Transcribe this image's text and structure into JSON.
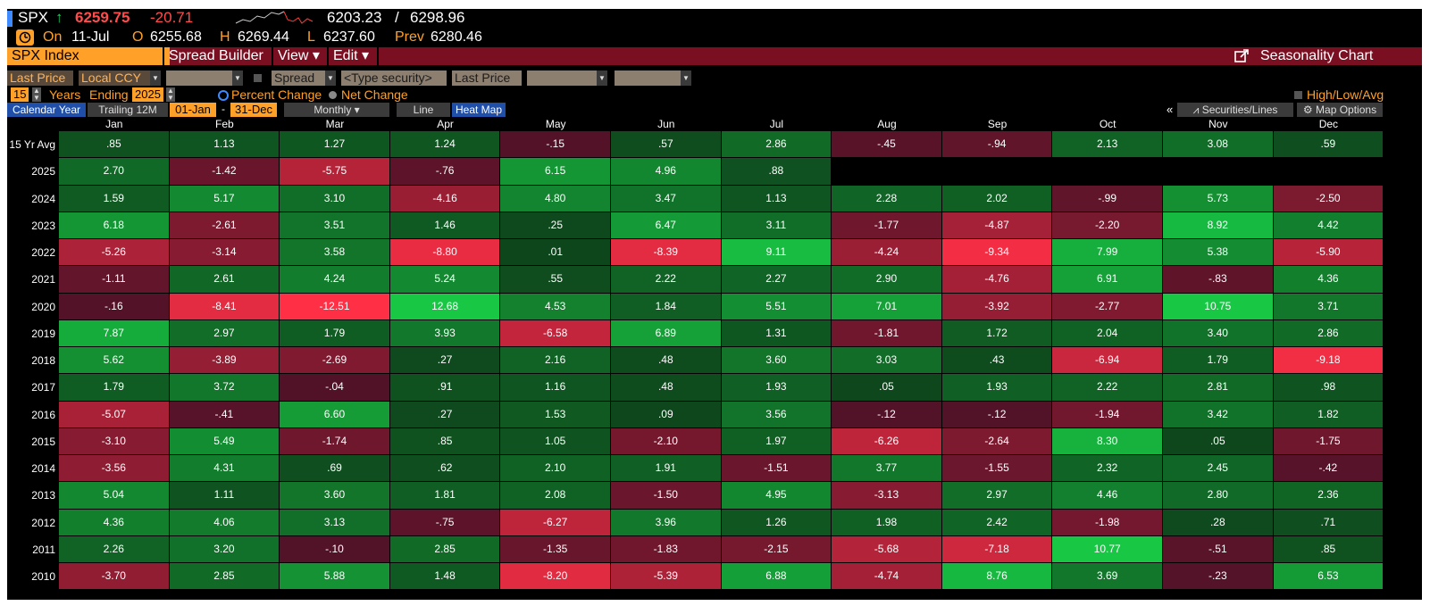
{
  "ticker": {
    "symbol": "SPX",
    "arrow": "↑",
    "last": "6259.75",
    "change": "-20.71",
    "low_range": "6203.23",
    "slash": "/",
    "high_range": "6298.96"
  },
  "ohlc": {
    "on_label": "On",
    "date": "11-Jul",
    "o_label": "O",
    "open": "6255.68",
    "h_label": "H",
    "high": "6269.44",
    "l_label": "L",
    "low": "6237.60",
    "prev_label": "Prev",
    "prev": "6280.46"
  },
  "menu": {
    "security": "SPX Index",
    "spread_builder": "Spread Builder",
    "view": "View ▾",
    "edit": "Edit ▾",
    "seasonality_chart": "Seasonality Chart"
  },
  "fields": {
    "field1": "Last Price",
    "currency": "Local CCY",
    "spread": "Spread",
    "type_security": "<Type security>",
    "field2": "Last Price"
  },
  "years_row": {
    "years_count": "15",
    "years_label": "Years",
    "ending_label": "Ending",
    "end_year": "2025",
    "percent_change": "Percent Change",
    "net_change": "Net Change",
    "high_low_avg": "High/Low/Avg"
  },
  "tabs": {
    "calendar_year": "Calendar Year",
    "trailing": "Trailing 12M",
    "start_date": "01-Jan",
    "dash": "-",
    "end_date": "31-Dec",
    "frequency": "Monthly ▾",
    "line": "Line",
    "heat_map": "Heat Map",
    "collapse": "«",
    "securities_lines": "Securities/Lines",
    "map_options": "Map Options"
  },
  "colors": {
    "background": "#000000",
    "menu_bar": "#7a0f22",
    "accent_orange": "#ffa028",
    "up_green": "#1ed760",
    "down_red": "#ff4d4d",
    "selected_tab": "#1f4fa8"
  },
  "heatmap": {
    "months": [
      "Jan",
      "Feb",
      "Mar",
      "Apr",
      "May",
      "Jun",
      "Jul",
      "Aug",
      "Sep",
      "Oct",
      "Nov",
      "Dec"
    ],
    "rows": [
      {
        "label": "15 Yr Avg",
        "values": [
          ".85",
          "1.13",
          "1.27",
          "1.24",
          "-.15",
          ".57",
          "2.86",
          "-.45",
          "-.94",
          "2.13",
          "3.08",
          ".59"
        ]
      },
      {
        "label": "2025",
        "values": [
          "2.70",
          "-1.42",
          "-5.75",
          "-.76",
          "6.15",
          "4.96",
          ".88",
          "",
          "",
          "",
          "",
          ""
        ]
      },
      {
        "label": "2024",
        "values": [
          "1.59",
          "5.17",
          "3.10",
          "-4.16",
          "4.80",
          "3.47",
          "1.13",
          "2.28",
          "2.02",
          "-.99",
          "5.73",
          "-2.50"
        ]
      },
      {
        "label": "2023",
        "values": [
          "6.18",
          "-2.61",
          "3.51",
          "1.46",
          ".25",
          "6.47",
          "3.11",
          "-1.77",
          "-4.87",
          "-2.20",
          "8.92",
          "4.42"
        ]
      },
      {
        "label": "2022",
        "values": [
          "-5.26",
          "-3.14",
          "3.58",
          "-8.80",
          ".01",
          "-8.39",
          "9.11",
          "-4.24",
          "-9.34",
          "7.99",
          "5.38",
          "-5.90"
        ]
      },
      {
        "label": "2021",
        "values": [
          "-1.11",
          "2.61",
          "4.24",
          "5.24",
          ".55",
          "2.22",
          "2.27",
          "2.90",
          "-4.76",
          "6.91",
          "-.83",
          "4.36"
        ]
      },
      {
        "label": "2020",
        "values": [
          "-.16",
          "-8.41",
          "-12.51",
          "12.68",
          "4.53",
          "1.84",
          "5.51",
          "7.01",
          "-3.92",
          "-2.77",
          "10.75",
          "3.71"
        ]
      },
      {
        "label": "2019",
        "values": [
          "7.87",
          "2.97",
          "1.79",
          "3.93",
          "-6.58",
          "6.89",
          "1.31",
          "-1.81",
          "1.72",
          "2.04",
          "3.40",
          "2.86"
        ]
      },
      {
        "label": "2018",
        "values": [
          "5.62",
          "-3.89",
          "-2.69",
          ".27",
          "2.16",
          ".48",
          "3.60",
          "3.03",
          ".43",
          "-6.94",
          "1.79",
          "-9.18"
        ]
      },
      {
        "label": "2017",
        "values": [
          "1.79",
          "3.72",
          "-.04",
          ".91",
          "1.16",
          ".48",
          "1.93",
          ".05",
          "1.93",
          "2.22",
          "2.81",
          ".98"
        ]
      },
      {
        "label": "2016",
        "values": [
          "-5.07",
          "-.41",
          "6.60",
          ".27",
          "1.53",
          ".09",
          "3.56",
          "-.12",
          "-.12",
          "-1.94",
          "3.42",
          "1.82"
        ]
      },
      {
        "label": "2015",
        "values": [
          "-3.10",
          "5.49",
          "-1.74",
          ".85",
          "1.05",
          "-2.10",
          "1.97",
          "-6.26",
          "-2.64",
          "8.30",
          ".05",
          "-1.75"
        ]
      },
      {
        "label": "2014",
        "values": [
          "-3.56",
          "4.31",
          ".69",
          ".62",
          "2.10",
          "1.91",
          "-1.51",
          "3.77",
          "-1.55",
          "2.32",
          "2.45",
          "-.42"
        ]
      },
      {
        "label": "2013",
        "values": [
          "5.04",
          "1.11",
          "3.60",
          "1.81",
          "2.08",
          "-1.50",
          "4.95",
          "-3.13",
          "2.97",
          "4.46",
          "2.80",
          "2.36"
        ]
      },
      {
        "label": "2012",
        "values": [
          "4.36",
          "4.06",
          "3.13",
          "-.75",
          "-6.27",
          "3.96",
          "1.26",
          "1.98",
          "2.42",
          "-1.98",
          ".28",
          ".71"
        ]
      },
      {
        "label": "2011",
        "values": [
          "2.26",
          "3.20",
          "-.10",
          "2.85",
          "-1.35",
          "-1.83",
          "-2.15",
          "-5.68",
          "-7.18",
          "10.77",
          "-.51",
          ".85"
        ]
      },
      {
        "label": "2010",
        "values": [
          "-3.70",
          "2.85",
          "5.88",
          "1.48",
          "-8.20",
          "-5.39",
          "6.88",
          "-4.74",
          "8.76",
          "3.69",
          "-.23",
          "6.53"
        ]
      }
    ]
  }
}
